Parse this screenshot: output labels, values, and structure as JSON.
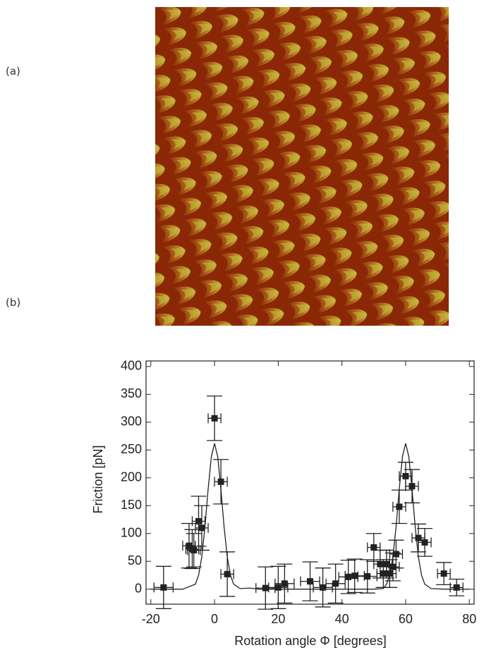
{
  "panel_labels": [
    "(a)",
    "(b)"
  ],
  "chart_data": {
    "type": "scatter",
    "xlabel": "Rotation angle Φ [degrees]",
    "ylabel": "Friction [pN]",
    "xlim": [
      -21.5,
      81.5
    ],
    "ylim": [
      -27,
      410
    ],
    "xticks": [
      -20,
      0,
      20,
      40,
      60,
      80
    ],
    "yticks": [
      0,
      50,
      100,
      150,
      200,
      250,
      300,
      350,
      400
    ],
    "series": [
      {
        "type": "scatter",
        "color": "#222222",
        "x": [
          -16,
          -8,
          -7,
          -6.5,
          -5,
          -4,
          0,
          2,
          4,
          16,
          20,
          22,
          30,
          34,
          38,
          42,
          44,
          48,
          50,
          52,
          53,
          54,
          55,
          56,
          57,
          58,
          60,
          62,
          64,
          66,
          72,
          76
        ],
        "values": [
          3,
          78,
          72,
          70,
          122,
          110,
          307,
          193,
          27,
          2,
          3,
          10,
          14,
          3,
          10,
          22,
          24,
          23,
          75,
          45,
          28,
          45,
          28,
          40,
          63,
          148,
          203,
          185,
          92,
          84,
          28,
          3
        ],
        "xerr": [
          3,
          2,
          2,
          2,
          2,
          2,
          2,
          2,
          2,
          3,
          3,
          3,
          3,
          3,
          3,
          3,
          3,
          3,
          2,
          2,
          2,
          2,
          2,
          2,
          2,
          2,
          2,
          2,
          2,
          2,
          2,
          2
        ],
        "yerr": [
          38,
          40,
          35,
          30,
          45,
          40,
          40,
          40,
          40,
          38,
          38,
          35,
          35,
          35,
          35,
          30,
          30,
          30,
          25,
          25,
          25,
          25,
          25,
          25,
          25,
          30,
          25,
          30,
          25,
          25,
          20,
          15
        ]
      },
      {
        "type": "line",
        "color": "#222222",
        "x": [
          -20,
          -10,
          -6,
          -5,
          -4,
          -3,
          -2,
          -1,
          0,
          1,
          2,
          3,
          4,
          5,
          6,
          8,
          11,
          14,
          20,
          30,
          40,
          50,
          53,
          54,
          55,
          56,
          57,
          58,
          59,
          60,
          61,
          62,
          63,
          64,
          65,
          66,
          68,
          72,
          80
        ],
        "values": [
          0,
          0,
          9,
          25,
          58,
          112,
          180,
          238,
          262,
          238,
          180,
          112,
          58,
          25,
          9,
          1,
          2,
          0,
          0,
          0,
          0,
          0,
          1,
          9,
          25,
          58,
          112,
          180,
          238,
          262,
          238,
          180,
          112,
          58,
          25,
          9,
          1,
          0,
          0
        ]
      }
    ]
  }
}
